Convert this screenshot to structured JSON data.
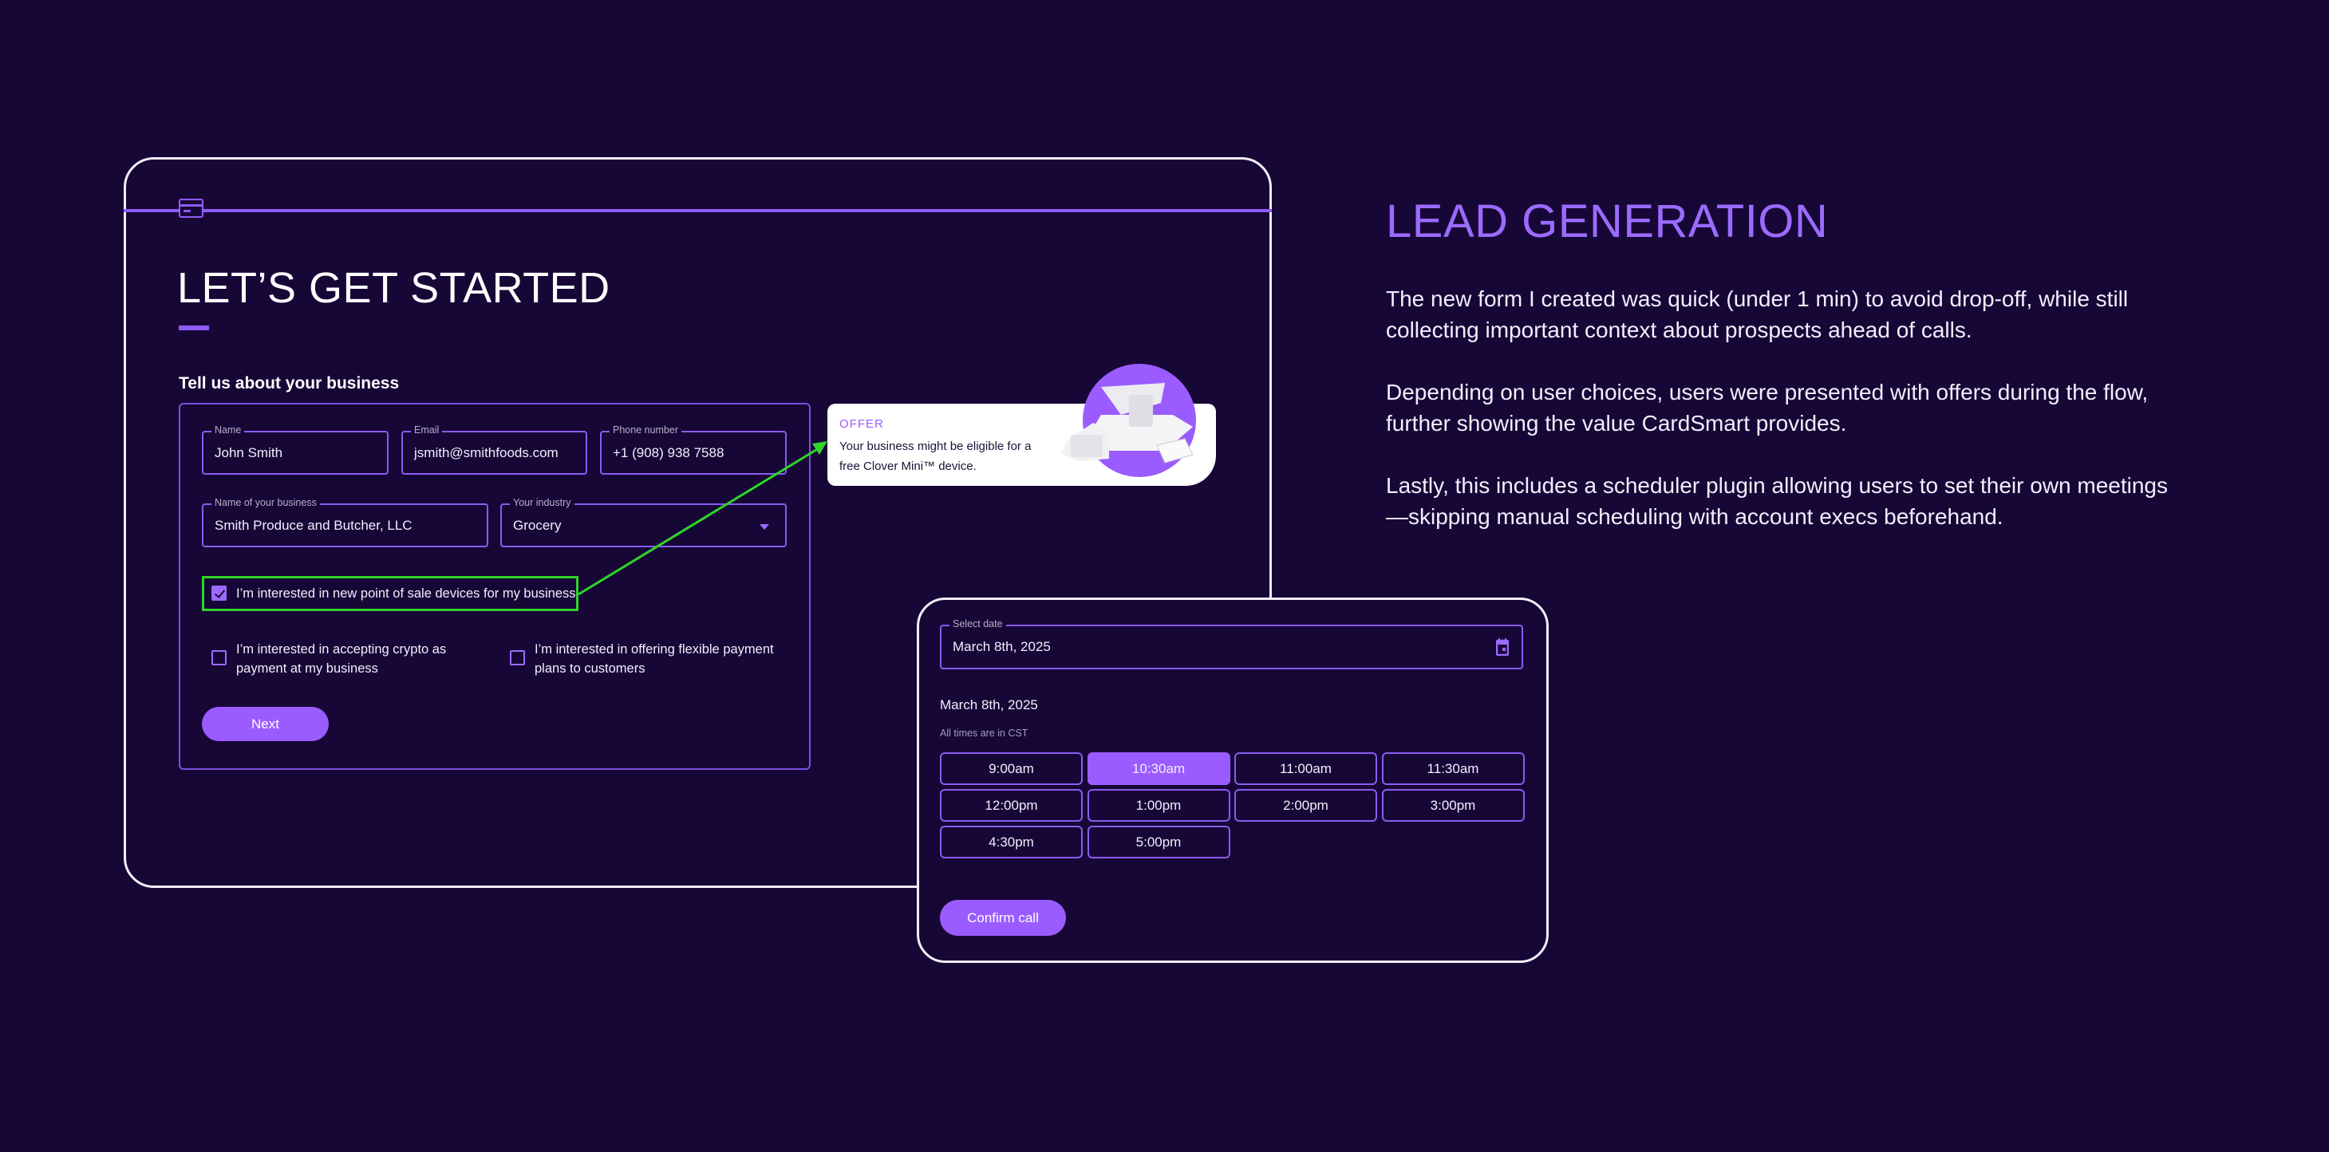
{
  "form": {
    "title": "LET’S GET STARTED",
    "section_label": "Tell us about your business",
    "fields": [
      {
        "label": "Name",
        "value": "John Smith"
      },
      {
        "label": "Email",
        "value": "jsmith@smithfoods.com"
      },
      {
        "label": "Phone number",
        "value": "+1 (908) 938 7588"
      },
      {
        "label": "Name of your business",
        "value": "Smith Produce and Butcher, LLC"
      },
      {
        "label": "Your industry",
        "value": "Grocery"
      }
    ],
    "checkboxes": [
      {
        "label": "I’m interested in new point of sale devices for my business",
        "checked": true
      },
      {
        "label": "I’m interested in accepting crypto as payment at my business",
        "checked": false
      },
      {
        "label": "I’m interested in offering flexible payment plans to customers",
        "checked": false
      }
    ],
    "next_label": "Next"
  },
  "offer": {
    "title": "OFFER",
    "text": "Your business might be eligible for a free Clover Mini™ device."
  },
  "scheduler": {
    "date_label": "Select date",
    "date_value": "March 8th, 2025",
    "heading": "March 8th, 2025",
    "timezone_note": "All times are in CST",
    "slots": [
      "9:00am",
      "10:30am",
      "11:00am",
      "11:30am",
      "12:00pm",
      "1:00pm",
      "2:00pm",
      "3:00pm",
      "4:30pm",
      "5:00pm"
    ],
    "selected_slot": "10:30am",
    "confirm_label": "Confirm call"
  },
  "description": {
    "title": "LEAD GENERATION",
    "paragraphs": [
      "The new form I created was quick (under 1 min) to avoid drop-off, while still collecting important context about prospects ahead of calls.",
      "Depending on user choices, users were presented with offers during the flow, further showing the value CardSmart provides.",
      "Lastly, this includes a scheduler plugin allowing users to set their own meetings—skipping manual scheduling with account execs beforehand."
    ]
  },
  "colors": {
    "background": "#170736",
    "accent": "#9b5cff",
    "highlight": "#2fd42a"
  }
}
